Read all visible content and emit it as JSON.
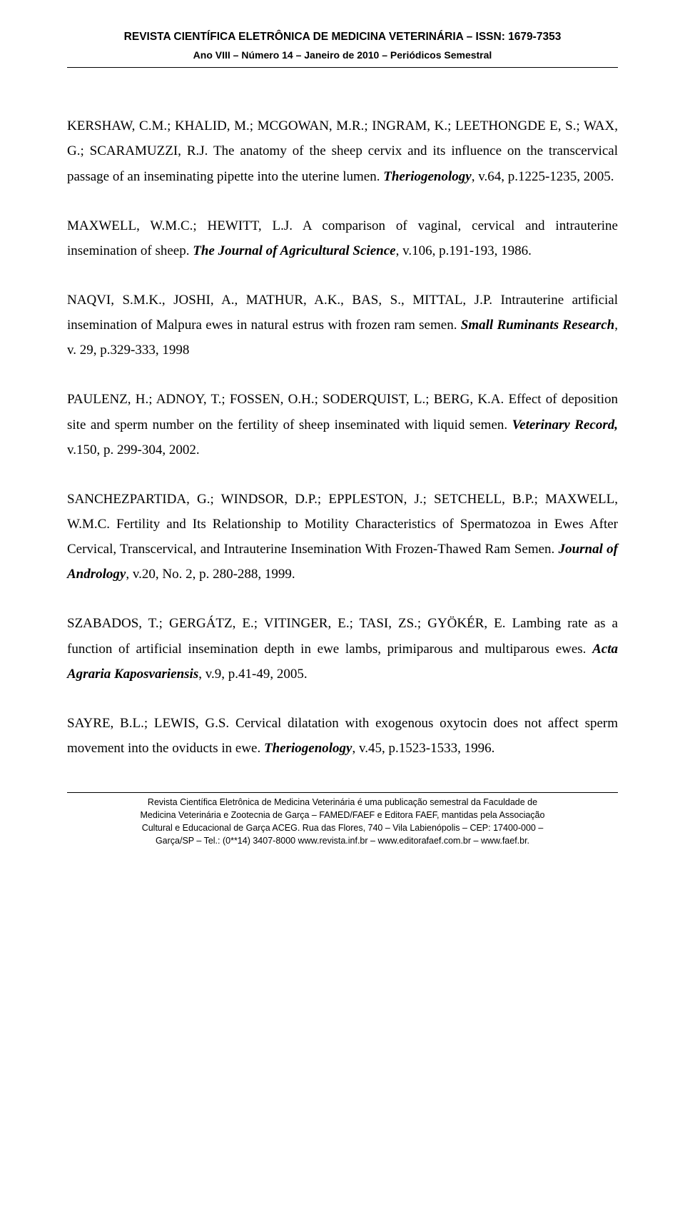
{
  "colors": {
    "text": "#000000",
    "background": "#ffffff",
    "rule": "#000000"
  },
  "typography": {
    "body_font": "Times New Roman",
    "body_size_pt": 14,
    "header_font": "Verdana",
    "header_size_pt": 11,
    "footer_size_pt": 9,
    "line_height": 1.85
  },
  "header": {
    "line1": "REVISTA CIENTÍFICA ELETRÔNICA DE MEDICINA VETERINÁRIA – ISSN: 1679-7353",
    "line2": "Ano VIII – Número 14 – Janeiro de 2010 – Periódicos Semestral"
  },
  "references": [
    {
      "authors_prefix": "KERSHAW, C.M.; KHALID, M.; MCGOWAN, M.R.; INGRAM, K.; LEETHONGDE E, S.; WAX, G.; SCARAMUZZI, R.J. ",
      "title": "The anatomy of the sheep cervix and its influence on the transcervical passage of an inseminating pipette into the uterine lumen. ",
      "journal": "Theriogenology",
      "suffix": ", v.64, p.1225-1235, 2005."
    },
    {
      "authors_prefix": "MAXWELL, W.M.C.; HEWITT, L.J. ",
      "title": "A comparison of vaginal, cervical and intrauterine insemination of sheep. ",
      "journal": "The Journal of Agricultural Science",
      "suffix": ", v.106, p.191-193, 1986."
    },
    {
      "authors_prefix": "NAQVI, S.M.K., JOSHI, A., MATHUR, A.K., BAS, S., MITTAL, J.P. ",
      "title": "Intrauterine artificial insemination of Malpura ewes in natural estrus with frozen ram semen. ",
      "journal": "Small Ruminants Research",
      "suffix": ", v. 29, p.329-333, 1998"
    },
    {
      "authors_prefix": "PAULENZ, H.; ADNOY, T.; FOSSEN, O.H.; SODERQUIST, L.; BERG, K.A. ",
      "title": "Effect of deposition site and sperm number on the fertility of sheep inseminated with liquid semen. ",
      "journal": "Veterinary Record,",
      "suffix": " v.150, p. 299-304, 2002."
    },
    {
      "authors_prefix": "SANCHEZPARTIDA, G.; WINDSOR, D.P.; EPPLESTON, J.; SETCHELL, B.P.; MAXWELL, W.M.C. ",
      "title": "Fertility and Its Relationship to Motility Characteristics of Spermatozoa in Ewes After Cervical, Transcervical, and Intrauterine Insemination With Frozen-Thawed Ram Semen. ",
      "journal": "Journal of Andrology",
      "suffix": ", v.20, No. 2, p. 280-288, 1999."
    },
    {
      "authors_prefix": "SZABADOS, T.; GERGÁTZ, E.; VITINGER, E.; TASI, ZS.; GYÖKÉR, E. ",
      "title": "Lambing rate as a function of artificial insemination depth in ewe lambs, primiparous and multiparous ewes. ",
      "journal": "Acta Agraria Kaposvariensis",
      "suffix": ", v.9, p.41-49, 2005."
    },
    {
      "authors_prefix": "SAYRE, B.L.; LEWIS, G.S. ",
      "title": "Cervical dilatation with exogenous oxytocin does not affect sperm movement into the oviducts in ewe. ",
      "journal": "Theriogenology",
      "suffix": ", v.45, p.1523-1533, 1996."
    }
  ],
  "footer": {
    "line1": "Revista Científica Eletrônica de Medicina Veterinária é uma publicação semestral da Faculdade de",
    "line2": "Medicina Veterinária e Zootecnia de Garça – FAMED/FAEF e Editora FAEF, mantidas pela Associação",
    "line3": "Cultural e Educacional de Garça ACEG. Rua das Flores, 740 – Vila Labienópolis – CEP: 17400-000 –",
    "line4": "Garça/SP – Tel.: (0**14) 3407-8000 www.revista.inf.br – www.editorafaef.com.br – www.faef.br."
  }
}
